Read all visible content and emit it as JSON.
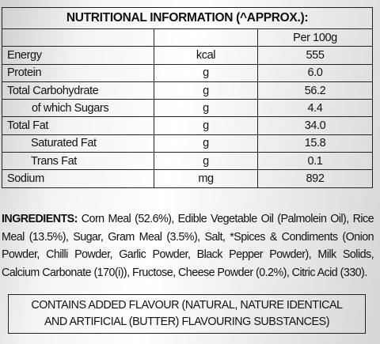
{
  "table": {
    "title": "NUTRITIONAL INFORMATION (^APPROX.):",
    "column_header": "Per 100g",
    "rows": [
      {
        "label": "Energy",
        "unit": "kcal",
        "value": "555"
      },
      {
        "label": "Protein",
        "unit": "g",
        "value": "6.0"
      },
      {
        "label": "Total Carbohydrate",
        "unit": "g",
        "value": "56.2"
      },
      {
        "label": "of which Sugars",
        "unit": "g",
        "value": "4.4"
      },
      {
        "label": "Total Fat",
        "unit": "g",
        "value": "34.0"
      },
      {
        "label": "Saturated Fat",
        "unit": "g",
        "value": "15.8"
      },
      {
        "label": "Trans Fat",
        "unit": "g",
        "value": "0.1"
      },
      {
        "label": "Sodium",
        "unit": "mg",
        "value": "892"
      }
    ]
  },
  "ingredients": {
    "heading": "INGREDIENTS:",
    "text": " Corn Meal (52.6%), Edible Vegetable Oil (Palmolein Oil), Rice Meal (13.5%), Sugar, Gram Meal (3.5%), Salt, *Spices & Condiments (Onion Powder, Chilli Powder, Garlic Powder, Black Pepper Powder), Milk Solids, Calcium Carbonate (170(i)), Fructose, Cheese Powder (0.2%), Citric Acid (330)."
  },
  "notice": {
    "line1": "CONTAINS ADDED FLAVOUR (NATURAL, NATURE IDENTICAL",
    "line2": "AND ARTIFICIAL (BUTTER) FLAVOURING SUBSTANCES)"
  }
}
